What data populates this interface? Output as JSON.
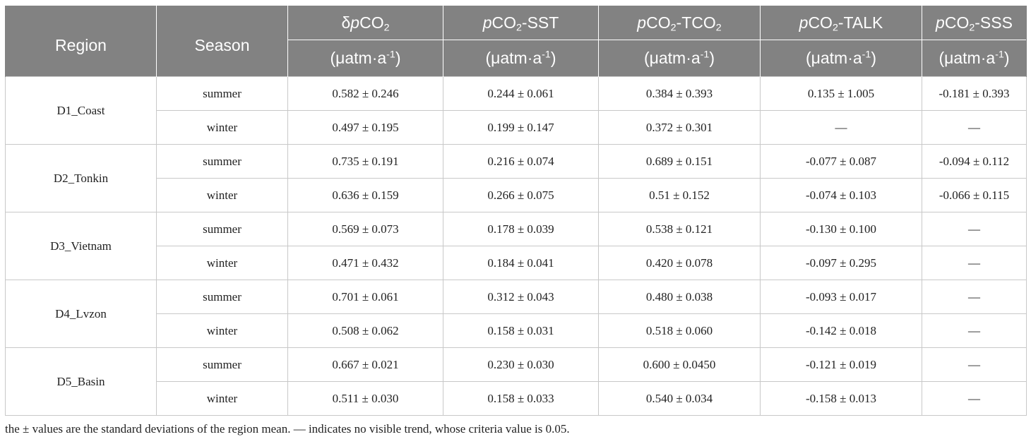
{
  "table": {
    "headers": {
      "region": "Region",
      "season": "Season",
      "unit": "(μatm·a",
      "unit_exp": "-1",
      "unit_close": ")",
      "cols": [
        {
          "pre": "δ",
          "italic": "p",
          "base": "CO",
          "sub": "2",
          "suffix": ""
        },
        {
          "pre": "",
          "italic": "p",
          "base": "CO",
          "sub": "2",
          "suffix": "-SST"
        },
        {
          "pre": "",
          "italic": "p",
          "base": "CO",
          "sub": "2",
          "suffix": "-TCO",
          "suffix_sub": "2"
        },
        {
          "pre": "",
          "italic": "p",
          "base": "CO",
          "sub": "2",
          "suffix": "-TALK"
        },
        {
          "pre": "",
          "italic": "p",
          "base": "CO",
          "sub": "2",
          "suffix": "-SSS"
        }
      ]
    },
    "regions": [
      {
        "name": "D1_Coast",
        "rows": [
          {
            "season": "summer",
            "values": [
              "0.582 ± 0.246",
              "0.244 ± 0.061",
              "0.384 ± 0.393",
              "0.135 ± 1.005",
              "-0.181 ± 0.393"
            ]
          },
          {
            "season": "winter",
            "values": [
              "0.497 ± 0.195",
              "0.199 ± 0.147",
              "0.372 ± 0.301",
              "—",
              "—"
            ]
          }
        ]
      },
      {
        "name": "D2_Tonkin",
        "rows": [
          {
            "season": "summer",
            "values": [
              "0.735 ± 0.191",
              "0.216 ± 0.074",
              "0.689 ± 0.151",
              "-0.077 ± 0.087",
              "-0.094 ± 0.112"
            ]
          },
          {
            "season": "winter",
            "values": [
              "0.636 ± 0.159",
              "0.266 ± 0.075",
              "0.51 ± 0.152",
              "-0.074 ± 0.103",
              "-0.066 ± 0.115"
            ]
          }
        ]
      },
      {
        "name": "D3_Vietnam",
        "rows": [
          {
            "season": "summer",
            "values": [
              "0.569 ± 0.073",
              "0.178 ± 0.039",
              "0.538 ± 0.121",
              "-0.130 ± 0.100",
              "—"
            ]
          },
          {
            "season": "winter",
            "values": [
              "0.471 ± 0.432",
              "0.184 ± 0.041",
              "0.420 ± 0.078",
              "-0.097 ± 0.295",
              "—"
            ]
          }
        ]
      },
      {
        "name": "D4_Lvzon",
        "rows": [
          {
            "season": "summer",
            "values": [
              "0.701 ± 0.061",
              "0.312 ± 0.043",
              "0.480 ± 0.038",
              "-0.093 ± 0.017",
              "—"
            ]
          },
          {
            "season": "winter",
            "values": [
              "0.508 ± 0.062",
              "0.158 ± 0.031",
              "0.518 ± 0.060",
              "-0.142 ± 0.018",
              "—"
            ]
          }
        ]
      },
      {
        "name": "D5_Basin",
        "rows": [
          {
            "season": "summer",
            "values": [
              "0.667 ± 0.021",
              "0.230 ± 0.030",
              "0.600 ± 0.0450",
              "-0.121 ± 0.019",
              "—"
            ]
          },
          {
            "season": "winter",
            "values": [
              "0.511 ± 0.030",
              "0.158 ± 0.033",
              "0.540 ± 0.034",
              "-0.158 ± 0.013",
              "—"
            ]
          }
        ]
      }
    ]
  },
  "footnote": "the ± values are the standard deviations of the region mean. — indicates no visible trend, whose criteria value is 0.05.",
  "colors": {
    "header_bg": "#828282",
    "header_text": "#ffffff",
    "grid": "#c8c8c8"
  }
}
